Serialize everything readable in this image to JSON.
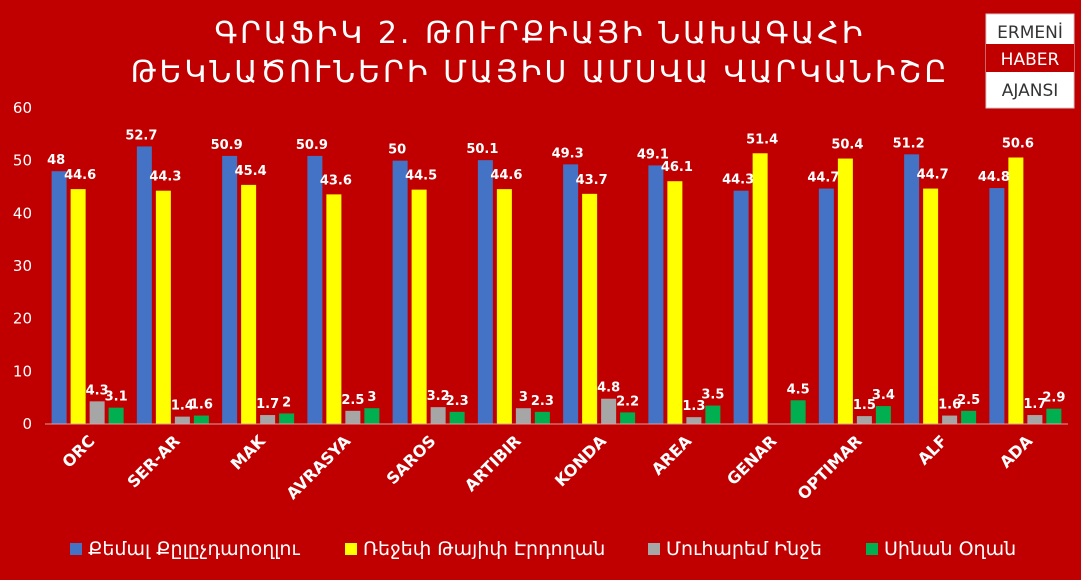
{
  "chart_data": {
    "type": "bar",
    "title_lines": [
      "ԳՐԱՖԻԿ 2. ԹՈՒՐՔԻԱՅԻ ՆԱԽԱԳԱՀԻ",
      "ԹԵԿՆԱԾՈՒՆԵՐԻ ՄԱՅԻՍ ԱՄՍՎԱ ՎԱՐԿԱՆԻՇԸ"
    ],
    "xlabel": "",
    "ylabel": "",
    "ylim": [
      0,
      60
    ],
    "yticks": [
      "0",
      "10",
      "20",
      "30",
      "40",
      "50",
      "60"
    ],
    "grid": false,
    "legend_position": "bottom",
    "categories": [
      "ORC",
      "SER-AR",
      "MAK",
      "AVRASYA",
      "SAROS",
      "ARTIBIR",
      "KONDA",
      "AREA",
      "GENAR",
      "OPTIMAR",
      "ALF",
      "ADA"
    ],
    "series": [
      {
        "name": "Քեմալ Քըլըչդարօղլու",
        "color": "#4472c4",
        "values": [
          48,
          52.7,
          50.9,
          50.9,
          50,
          50.1,
          49.3,
          49.1,
          44.3,
          44.7,
          51.2,
          44.8
        ],
        "labels": [
          "48",
          "52.7",
          "50.9",
          "50.9",
          "50",
          "50.1",
          "49.3",
          "49.1",
          "44.3",
          "44.7",
          "51.2",
          "44.8"
        ]
      },
      {
        "name": "Ռեջեփ Թայիփ Էրդողան",
        "color": "#ffff00",
        "values": [
          44.6,
          44.3,
          45.4,
          43.6,
          44.5,
          44.6,
          43.7,
          46.1,
          51.4,
          50.4,
          44.7,
          50.6
        ],
        "labels": [
          "44.6",
          "44.3",
          "45.4",
          "43.6",
          "44.5",
          "44.6",
          "43.7",
          "46.1",
          "51.4",
          "50.4",
          "44.7",
          "50.6"
        ]
      },
      {
        "name": "Մուհարեմ Ինջե",
        "color": "#a6a6a6",
        "values": [
          4.3,
          1.4,
          1.7,
          2.5,
          3.2,
          3,
          4.8,
          1.3,
          0,
          1.5,
          1.6,
          1.7
        ],
        "labels": [
          "4.3",
          "1.4",
          "1.7",
          "2.5",
          "3.2",
          "3",
          "4.8",
          "1.3",
          "",
          "1.5",
          "1.6",
          "1.7"
        ]
      },
      {
        "name": "Սինան Օղան",
        "color": "#00b050",
        "values": [
          3.1,
          1.6,
          2,
          3,
          2.3,
          2.3,
          2.2,
          3.5,
          4.5,
          3.4,
          2.5,
          2.9
        ],
        "labels": [
          "3.1",
          "1.6",
          "2",
          "3",
          "2.3",
          "2.3",
          "2.2",
          "3.5",
          "4.5",
          "3.4",
          "2.5",
          "2.9"
        ]
      }
    ]
  },
  "logo": {
    "line1": "ERMENİ",
    "line2": "HABER",
    "line3": "AJANSI"
  }
}
